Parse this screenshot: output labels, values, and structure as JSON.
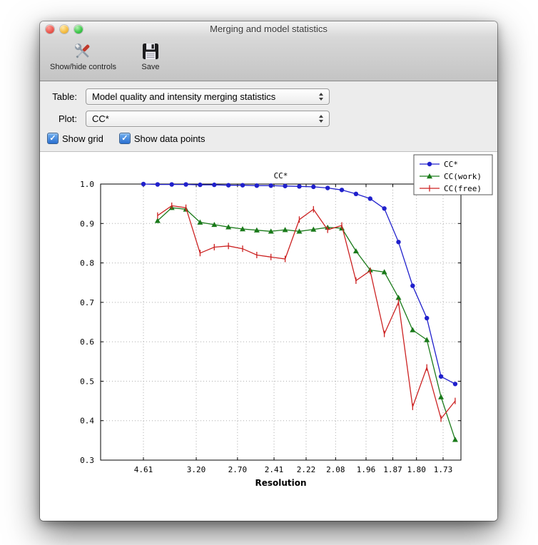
{
  "window": {
    "title": "Merging and model statistics"
  },
  "toolbar": {
    "items": [
      {
        "label": "Show/hide controls",
        "icon": "tools-icon"
      },
      {
        "label": "Save",
        "icon": "save-icon"
      }
    ]
  },
  "controls": {
    "table_label": "Table:",
    "table_value": "Model quality and intensity merging statistics",
    "plot_label": "Plot:",
    "plot_value": "CC*",
    "show_grid_label": "Show grid",
    "show_grid_checked": true,
    "show_points_label": "Show data points",
    "show_points_checked": true,
    "accent_color": "#2a6fd0"
  },
  "chart_data": {
    "type": "line",
    "title": "CC*",
    "xlabel": "Resolution",
    "ylabel": "",
    "ylim": [
      0.3,
      1.0
    ],
    "yticks": [
      "1.0",
      "0.9",
      "0.8",
      "0.7",
      "0.6",
      "0.5",
      "0.4",
      "0.3"
    ],
    "xtick_labels": [
      "4.61",
      "3.20",
      "2.70",
      "2.41",
      "2.22",
      "2.08",
      "1.96",
      "1.87",
      "1.80",
      "1.73"
    ],
    "x_axis_note": "resolution bins, evenly spaced in 1/d^2, 23 bins total",
    "grid": true,
    "legend_position": "upper right",
    "n_bins": 23,
    "series": [
      {
        "name": "CC*",
        "color": "#2020cc",
        "marker": "circle",
        "start_bin": 1,
        "values": [
          1.0,
          0.999,
          0.999,
          0.999,
          0.998,
          0.998,
          0.997,
          0.997,
          0.996,
          0.996,
          0.995,
          0.994,
          0.993,
          0.99,
          0.985,
          0.975,
          0.963,
          0.938,
          0.853,
          0.742,
          0.66,
          0.512,
          0.493
        ]
      },
      {
        "name": "CC(work)",
        "color": "#1a7a1a",
        "marker": "triangle",
        "start_bin": 2,
        "values": [
          0.907,
          0.94,
          0.936,
          0.903,
          0.897,
          0.891,
          0.886,
          0.883,
          0.88,
          0.884,
          0.88,
          0.885,
          0.89,
          0.888,
          0.83,
          0.782,
          0.777,
          0.712,
          0.63,
          0.605,
          0.46,
          0.352
        ]
      },
      {
        "name": "CC(free)",
        "color": "#cc2222",
        "marker": "vline",
        "start_bin": 2,
        "values": [
          0.92,
          0.945,
          0.94,
          0.825,
          0.84,
          0.843,
          0.836,
          0.82,
          0.815,
          0.81,
          0.91,
          0.936,
          0.884,
          0.895,
          0.755,
          0.78,
          0.62,
          0.7,
          0.435,
          0.535,
          0.405,
          0.45
        ]
      }
    ]
  }
}
